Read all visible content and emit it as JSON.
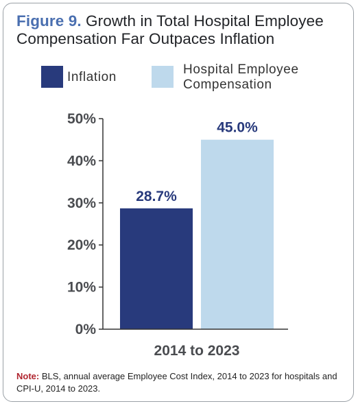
{
  "figure": {
    "label": "Figure 9.",
    "title": "Growth in Total Hospital Employee Compensation Far Outpaces Inflation"
  },
  "legend": [
    {
      "label": "Inflation",
      "color": "#283a7c"
    },
    {
      "label_line1": "Hospital Employee",
      "label_line2": "Compensation",
      "color": "#bed9ec"
    }
  ],
  "note": {
    "label": "Note:",
    "text": " BLS, annual average Employee Cost Index, 2014 to 2023 for hospitals and CPI-U, 2014 to 2023."
  },
  "chart_data": {
    "type": "bar",
    "categories": [
      "2014 to 2023"
    ],
    "series": [
      {
        "name": "Inflation",
        "values": [
          28.7
        ],
        "color": "#283a7c",
        "label": "28.7%"
      },
      {
        "name": "Hospital Employee Compensation",
        "values": [
          45.0
        ],
        "color": "#bed9ec",
        "label": "45.0%"
      }
    ],
    "ylim": [
      0,
      50
    ],
    "yticks": [
      0,
      10,
      20,
      30,
      40,
      50
    ],
    "ytick_labels": [
      "0%",
      "10%",
      "20%",
      "30%",
      "40%",
      "50%"
    ],
    "unit": "%",
    "grid": false,
    "legend_position": "top",
    "title": "Growth in Total Hospital Employee Compensation Far Outpaces Inflation",
    "xlabel": "",
    "ylabel": ""
  }
}
